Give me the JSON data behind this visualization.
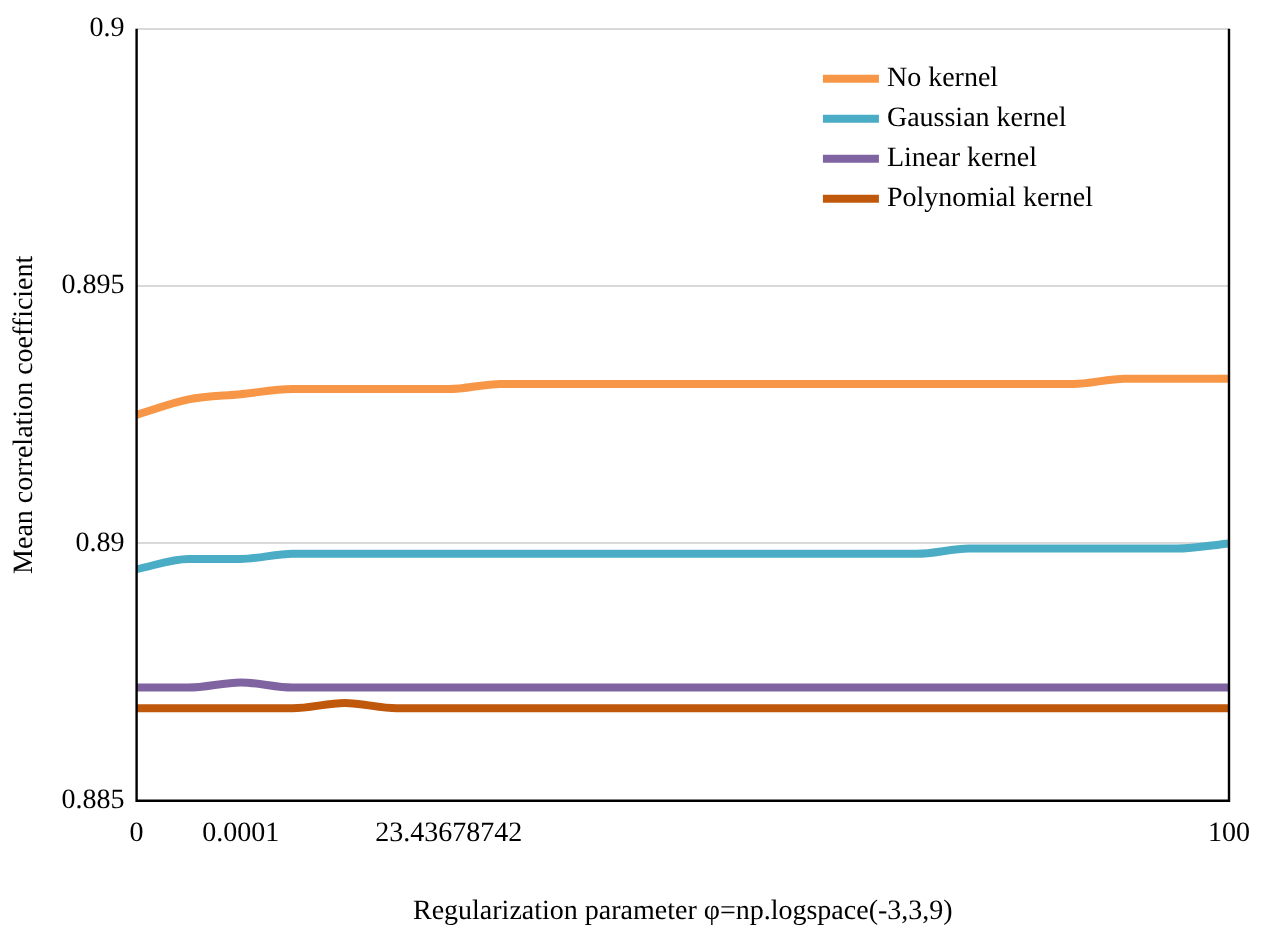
{
  "chart_data": {
    "type": "line",
    "xlabel": "Regularization parameter φ=np.logspace(-3,3,9)",
    "ylabel": "Mean correlation coefficient",
    "categories": [
      "0",
      null,
      "0.0001",
      null,
      null,
      null,
      "23.43678742",
      null,
      null,
      null,
      null,
      null,
      null,
      null,
      null,
      null,
      null,
      null,
      null,
      null,
      null,
      "100"
    ],
    "series": [
      {
        "name": "No kernel",
        "color": "#f79646",
        "values": [
          0.8925,
          0.8928,
          0.8929,
          0.893,
          0.893,
          0.893,
          0.893,
          0.8931,
          0.8931,
          0.8931,
          0.8931,
          0.8931,
          0.8931,
          0.8931,
          0.8931,
          0.8931,
          0.8931,
          0.8931,
          0.8931,
          0.8932,
          0.8932,
          0.8932
        ]
      },
      {
        "name": "Gaussian kernel",
        "color": "#4bacc6",
        "values": [
          0.8895,
          0.8897,
          0.8897,
          0.8898,
          0.8898,
          0.8898,
          0.8898,
          0.8898,
          0.8898,
          0.8898,
          0.8898,
          0.8898,
          0.8898,
          0.8898,
          0.8898,
          0.8898,
          0.8899,
          0.8899,
          0.8899,
          0.8899,
          0.8899,
          0.89
        ]
      },
      {
        "name": "Linear kernel",
        "color": "#8064a2",
        "values": [
          0.8872,
          0.8872,
          0.8873,
          0.8872,
          0.8872,
          0.8872,
          0.8872,
          0.8872,
          0.8872,
          0.8872,
          0.8872,
          0.8872,
          0.8872,
          0.8872,
          0.8872,
          0.8872,
          0.8872,
          0.8872,
          0.8872,
          0.8872,
          0.8872,
          0.8872
        ]
      },
      {
        "name": "Polynomial kernel",
        "color": "#c0580c",
        "values": [
          0.8868,
          0.8868,
          0.8868,
          0.8868,
          0.8869,
          0.8868,
          0.8868,
          0.8868,
          0.8868,
          0.8868,
          0.8868,
          0.8868,
          0.8868,
          0.8868,
          0.8868,
          0.8868,
          0.8868,
          0.8868,
          0.8868,
          0.8868,
          0.8868,
          0.8868
        ]
      }
    ],
    "ylim": [
      0.885,
      0.9
    ],
    "yticks": [
      0.885,
      0.89,
      0.895,
      0.9
    ],
    "grid": "y",
    "legend": "top right",
    "marker": "none",
    "line_style": "solid"
  }
}
